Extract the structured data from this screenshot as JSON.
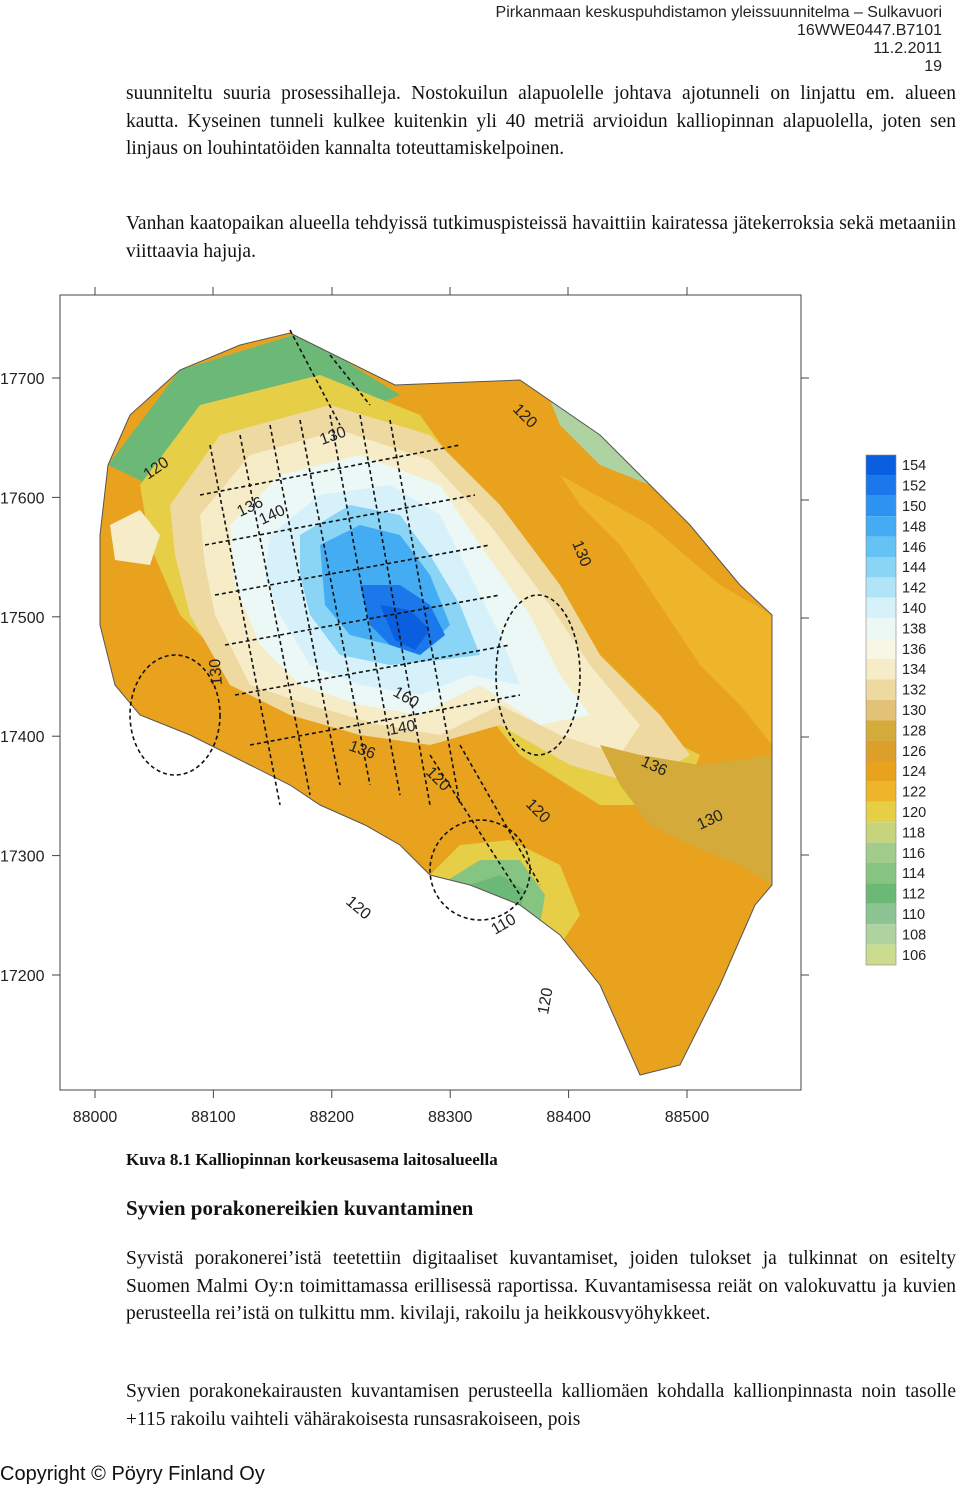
{
  "header": {
    "doc_title": "Pirkanmaan keskuspuhdistamon yleissuunnitelma – Sulkavuori",
    "doc_code": "16WWE0447.B7101",
    "date": "11.2.2011",
    "page_number": "19"
  },
  "body": {
    "paragraph_1": "suunniteltu suuria prosessihalleja. Nostokuilun alapuolelle johtava ajotunneli on linjattu em. alueen kautta. Kyseinen tunneli kulkee kuitenkin yli 40 metriä arvioidun kalliopinnan alapuolella, joten sen linjaus on louhintatöiden kannalta toteuttamiskelpoinen.",
    "paragraph_2": "Vanhan kaatopaikan alueella tehdyissä tutkimuspisteissä havaittiin kairatessa jätekerroksia sekä metaaniin viittaavia hajuja.",
    "figure_caption": "Kuva 8.1  Kalliopinnan korkeusasema laitosalueella",
    "section_heading": "Syvien porakonereikien kuvantaminen",
    "paragraph_3": "Syvistä porakonerei’istä teetettiin digitaaliset kuvantamiset, joiden tulokset ja tulkinnat on esitelty Suomen Malmi Oy:n toimittamassa erillisessä raportissa. Kuvantamisessa reiät on valokuvattu ja kuvien perusteella rei’istä on tulkittu mm. kivilaji, rakoilu ja heikkousvyöhykkeet.",
    "paragraph_4": "Syvien porakonekairausten kuvantamisen perusteella kalliomäen kohdalla kallionpinnasta noin tasolle +115 rakoilu vaihteli vähärakoisesta runsasrakoiseen, pois"
  },
  "footer": {
    "copyright": "Copyright © Pöyry Finland Oy"
  },
  "chart_data": {
    "type": "heatmap",
    "subtype": "contour map",
    "x_ticks": [
      "88000",
      "88100",
      "88200",
      "88300",
      "88400",
      "88500"
    ],
    "y_ticks": [
      "17700",
      "17600",
      "17500",
      "17400",
      "17300",
      "17200"
    ],
    "xlim": [
      88000,
      88625
    ],
    "ylim": [
      17100,
      17770
    ],
    "contour_labels": [
      "120",
      "130",
      "120",
      "136",
      "140",
      "130",
      "130",
      "160",
      "140",
      "136",
      "120",
      "136",
      "120",
      "130",
      "120",
      "110",
      "120"
    ],
    "legend": {
      "placement": "right",
      "levels": [
        "154",
        "152",
        "150",
        "148",
        "146",
        "144",
        "142",
        "140",
        "138",
        "136",
        "134",
        "132",
        "130",
        "128",
        "126",
        "124",
        "122",
        "120",
        "118",
        "116",
        "114",
        "112",
        "110",
        "108",
        "106"
      ],
      "colors": [
        "#0a5ee0",
        "#1a78ea",
        "#2d93f0",
        "#44acf2",
        "#64c2f4",
        "#8ad4f6",
        "#b2e4f8",
        "#d6f1fa",
        "#ecf8f6",
        "#f8f6e4",
        "#f6ecc8",
        "#eed9a0",
        "#e2c276",
        "#d4aa3a",
        "#dca02a",
        "#e8a21e",
        "#eeb42a",
        "#e6cf46",
        "#c8d47c",
        "#a2cc8c",
        "#86c482",
        "#6cb876",
        "#8cc494",
        "#aed2a0",
        "#ccdc8e"
      ]
    }
  }
}
